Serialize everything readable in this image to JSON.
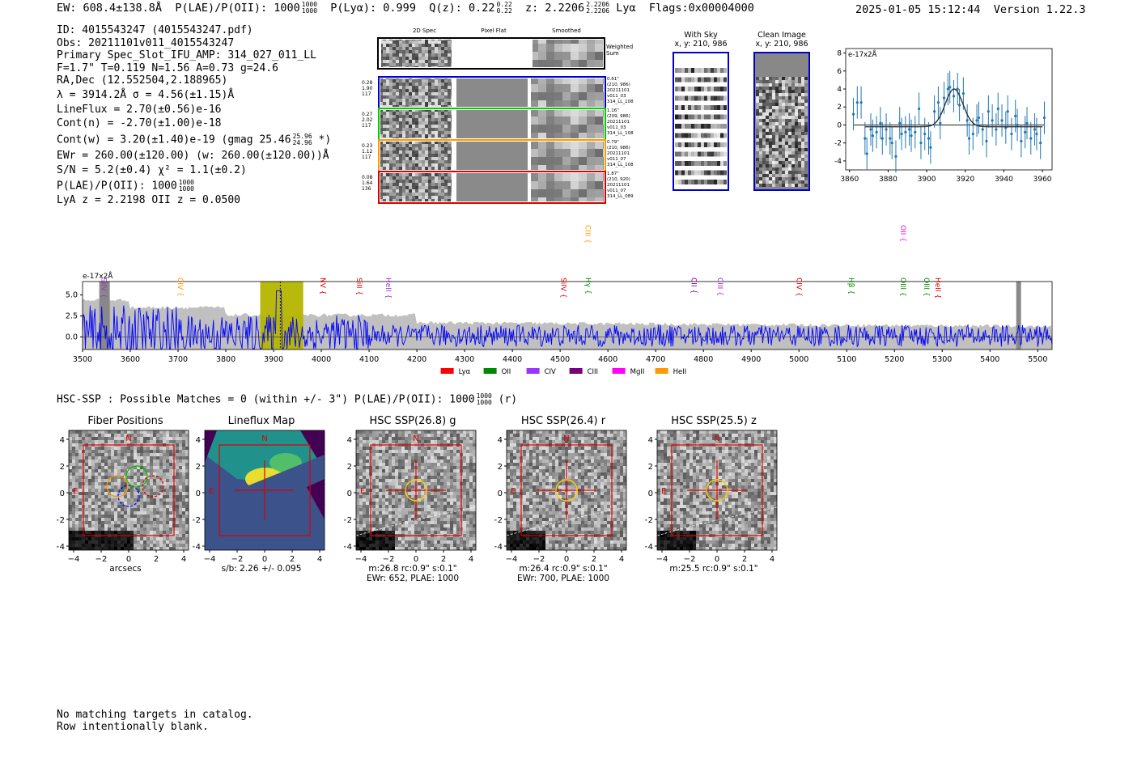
{
  "header": {
    "ew": "EW: 608.4±138.8Å",
    "plae": "P(LAE)/P(OII): 1000",
    "plae_hi": "1000",
    "plae_lo": "1000",
    "plya": "P(Lyα): 0.999",
    "qz": "Q(z): 0.22",
    "qz_hi": "0.22",
    "qz_lo": "0.22",
    "z": "z: 2.2206",
    "z_hi": "2.2206",
    "z_lo": "2.2206",
    "line": "Lyα",
    "flags": "Flags:0x00004000",
    "datetime": "2025-01-05 15:12:44",
    "version": "Version 1.22.3"
  },
  "info": {
    "id": "ID: 4015543247 (4015543247.pdf)",
    "obs": "Obs: 20211101v011_4015543247",
    "primary": "Primary Spec_Slot_IFU_AMP: 314_027_011_LL",
    "params": "F=1.7\"  T=0.119  N=1.56  A=0.73  g=24.6",
    "radec": "RA,Dec (12.552504,2.188965)",
    "lambda": "λ = 3914.2Å   σ = 4.56(±1.15)Å",
    "lineflux": "LineFlux = 2.70(±0.56)e-16",
    "contn": "Cont(n) = -2.70(±1.00)e-18",
    "contw": "Cont(w) = 3.20(±1.40)e-19 (gmag 25.46",
    "contw_hi": "25.96",
    "contw_lo": "24.96",
    "contw_end": "*)",
    "ewr": "EWr = 260.00(±120.00) (w: 260.00(±120.00))Å",
    "sn": "S/N = 5.2(±0.4)  χ² = 1.1(±0.2)",
    "plae": "P(LAE)/P(OII): 1000",
    "plae_hi": "1000",
    "plae_lo": "1000",
    "lyaz": "LyA z = 2.2198   OII z = 0.0500"
  },
  "cutouts": {
    "col_2d": "2D Spec",
    "col_flat": "Pixel Flat",
    "col_smooth": "Smoothed",
    "weighted": "Weighted Sum",
    "rows": [
      {
        "a": "0.28",
        "b": "1.90",
        "c": "117",
        "r1": "0.61\"",
        "r2": "(210, 986)",
        "r3": "20211101",
        "r4": "v011_03",
        "r5": "314_LL_108",
        "color": "#0000cc"
      },
      {
        "a": "0.27",
        "b": "2.02",
        "c": "117",
        "r1": "1.16\"",
        "r2": "(209, 986)",
        "r3": "20211101",
        "r4": "v011_03",
        "r5": "314_LL_108",
        "color": "#00cc00"
      },
      {
        "a": "0.23",
        "b": "1.12",
        "c": "117",
        "r1": "0.79\"",
        "r2": "(210, 986)",
        "r3": "20211101",
        "r4": "v011_07",
        "r5": "314_LL_108",
        "color": "#ff9900"
      },
      {
        "a": "0.08",
        "b": "1.64",
        "c": "136",
        "r1": "1.87\"",
        "r2": "(210, 920)",
        "r3": "20211101",
        "r4": "v011_07",
        "r5": "314_LL_089",
        "color": "#dd0000"
      }
    ],
    "with_sky": "With Sky",
    "with_sky_xy": "x, y: 210, 986",
    "clean": "Clean Image",
    "clean_xy": "x, y: 210, 986"
  },
  "hsc": {
    "text": "HSC-SSP : Possible Matches = 0 (within +/- 3\")  P(LAE)/P(OII): 1000",
    "hi": "1000",
    "lo": "1000",
    "band": "(r)"
  },
  "panels": [
    {
      "title": "Fiber Positions",
      "cap1": "arcsecs",
      "cap2": ""
    },
    {
      "title": "Lineflux Map",
      "cap1": "s/b: 2.26 +/- 0.095",
      "cap2": ""
    },
    {
      "title": "HSC SSP(26.8) g",
      "cap1": "m:26.8 rc:0.9\"  s:0.1\"",
      "cap2": "EWr: 652, PLAE: 1000"
    },
    {
      "title": "HSC SSP(26.4) r",
      "cap1": "m:26.4 rc:0.9\"  s:0.1\"",
      "cap2": "EWr: 700, PLAE: 1000"
    },
    {
      "title": "HSC SSP(25.5) z",
      "cap1": "m:25.5 rc:0.9\"  s:0.1\"",
      "cap2": ""
    }
  ],
  "footer": {
    "line1": "No matching targets in catalog.",
    "line2": "Row intentionally blank."
  },
  "colors": {
    "blue": "#1f77b4",
    "spec": "#0000ff",
    "sky": "#c0c0c0",
    "band": "#b5b500"
  },
  "chart_data": [
    {
      "type": "scatter",
      "title": "",
      "ylabel": "e-17x2Å",
      "xlim": [
        3858,
        3965
      ],
      "ylim": [
        -5,
        8.5
      ],
      "xticks": [
        3860,
        3880,
        3900,
        3920,
        3940,
        3960
      ],
      "yticks": [
        -4,
        -2,
        0,
        2,
        4,
        6,
        8
      ],
      "x": [
        3862,
        3864,
        3866,
        3868,
        3869,
        3871,
        3872,
        3874,
        3876,
        3877,
        3879,
        3881,
        3882,
        3884,
        3886,
        3887,
        3889,
        3891,
        3892,
        3894,
        3896,
        3897,
        3899,
        3901,
        3902,
        3904,
        3906,
        3907,
        3909,
        3911,
        3912,
        3914,
        3916,
        3917,
        3919,
        3921,
        3922,
        3924,
        3926,
        3927,
        3929,
        3931,
        3932,
        3934,
        3936,
        3937,
        3939,
        3941,
        3942,
        3944,
        3946,
        3947,
        3949,
        3951,
        3952,
        3954,
        3956,
        3957,
        3959,
        3961
      ],
      "y": [
        1.2,
        2.5,
        2.5,
        -1.5,
        -3.2,
        -0.5,
        -1.2,
        -0.8,
        0.2,
        -1.5,
        -0.5,
        -1.5,
        -2.0,
        -3.5,
        0.2,
        -1.0,
        -0.8,
        -0.5,
        -1.2,
        -0.8,
        1.8,
        -2.0,
        -1.0,
        -1.5,
        -2.5,
        1.5,
        2.5,
        0.2,
        3.0,
        4.0,
        4.2,
        3.2,
        4.0,
        2.2,
        3.5,
        0.5,
        -1.5,
        -1.0,
        0.5,
        0.8,
        -0.5,
        -1.8,
        1.5,
        0.5,
        -0.5,
        1.8,
        0.5,
        -0.3,
        1.5,
        -1.0,
        1.0,
        0.0,
        -1.8,
        -0.8,
        0.2,
        -1.5,
        -0.5,
        -1.0,
        -2.0,
        0.8
      ],
      "err": 1.8,
      "fit": {
        "x0": 3914.2,
        "sigma": 4.56,
        "amp": 4.2
      }
    },
    {
      "type": "line",
      "ylabel": "e-17x2Å",
      "xlim": [
        3500,
        5530
      ],
      "ylim": [
        -1.5,
        6.6
      ],
      "xticks": [
        3500,
        3600,
        3700,
        3800,
        3900,
        4000,
        4100,
        4200,
        4300,
        4400,
        4500,
        4600,
        4700,
        4800,
        4900,
        5000,
        5100,
        5200,
        5300,
        5400,
        5500
      ],
      "yticks": [
        0.0,
        2.5,
        5.0
      ],
      "highlight": [
        3872,
        3962
      ],
      "line_marks": [
        {
          "label": "SiIV",
          "x": 3535,
          "color": "#9933cc",
          "row": 0
        },
        {
          "label": "CIV",
          "x": 3695,
          "color": "#ff9900",
          "row": 0
        },
        {
          "label": "NV",
          "x": 3993,
          "color": "#dd0000",
          "row": 0
        },
        {
          "label": "SiII",
          "x": 4069,
          "color": "#dd0000",
          "row": 0
        },
        {
          "label": "HeII",
          "x": 4130,
          "color": "#9933cc",
          "row": 0
        },
        {
          "label": "SiIV",
          "x": 4497,
          "color": "#dd0000",
          "row": 0
        },
        {
          "label": "Hγ",
          "x": 4549,
          "color": "#008800",
          "row": 0
        },
        {
          "label": "CIII",
          "x": 4548,
          "color": "#ff9900",
          "row": 1
        },
        {
          "label": "CII",
          "x": 4770,
          "color": "#8800aa",
          "row": 0
        },
        {
          "label": "CIII",
          "x": 4825,
          "color": "#9933cc",
          "row": 0
        },
        {
          "label": "CIV",
          "x": 4990,
          "color": "#dd0000",
          "row": 0
        },
        {
          "label": "Hβ",
          "x": 5100,
          "color": "#008800",
          "row": 0
        },
        {
          "label": "OIII",
          "x": 5208,
          "color": "#008800",
          "row": 0
        },
        {
          "label": "OII",
          "x": 5208,
          "color": "#ff00ff",
          "row": 1
        },
        {
          "label": "OIII",
          "x": 5257,
          "color": "#008800",
          "row": 0
        },
        {
          "label": "HeII",
          "x": 5281,
          "color": "#dd0000",
          "row": 0
        }
      ],
      "legend": [
        {
          "label": "Lyα",
          "color": "#ff0000"
        },
        {
          "label": "OII",
          "color": "#008800"
        },
        {
          "label": "CIV",
          "color": "#9933ff"
        },
        {
          "label": "CIII",
          "color": "#770077"
        },
        {
          "label": "MgII",
          "color": "#ff00ff"
        },
        {
          "label": "HeII",
          "color": "#ff9900"
        }
      ]
    }
  ],
  "axis_ticks": {
    "x": [
      "−4",
      "−2",
      "0",
      "2",
      "4"
    ],
    "y": [
      "4",
      "2",
      "0",
      "−2",
      "−4"
    ],
    "n": "N",
    "e": "E"
  }
}
